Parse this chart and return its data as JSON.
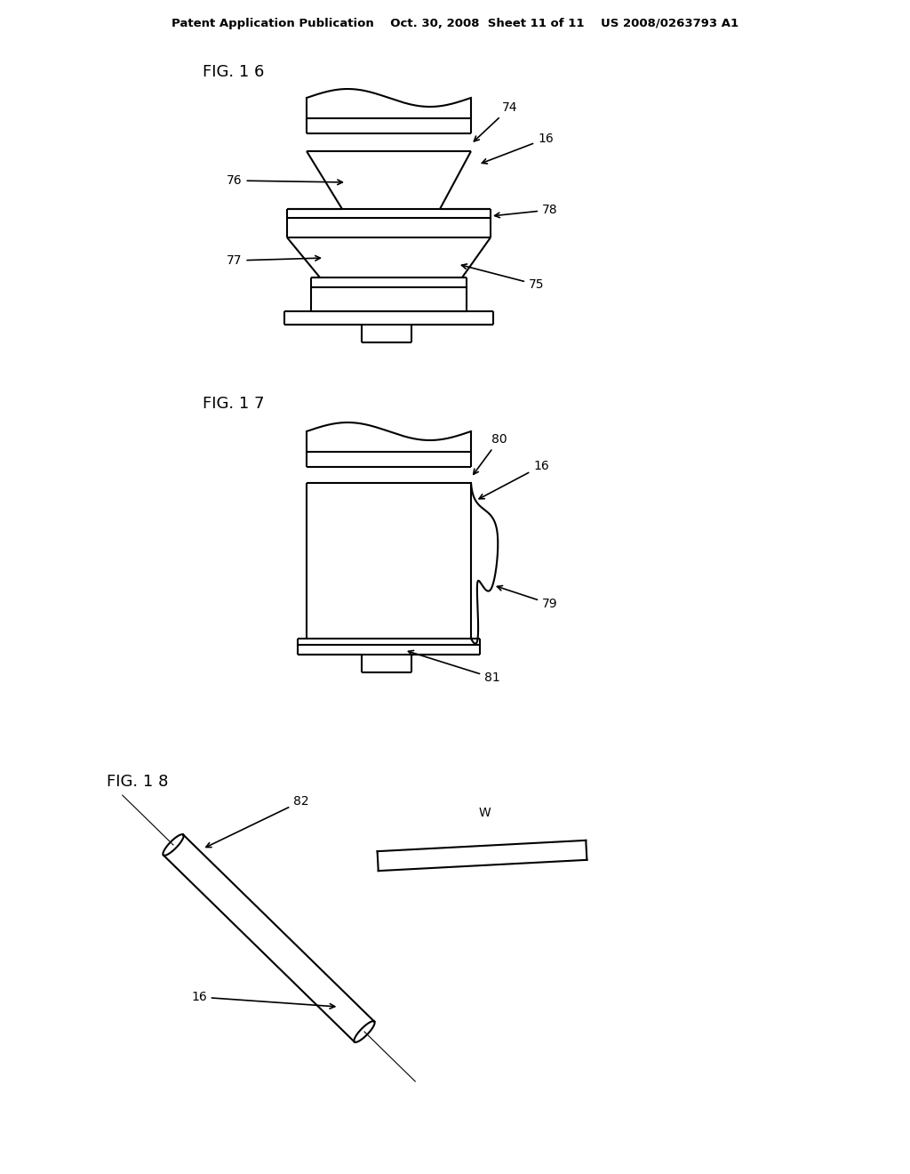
{
  "bg_color": "#ffffff",
  "text_color": "#000000",
  "line_color": "#000000",
  "header_text": "Patent Application Publication    Oct. 30, 2008  Sheet 11 of 11    US 2008/0263793 A1",
  "fig16_label": "FIG. 1 6",
  "fig17_label": "FIG. 1 7",
  "fig18_label": "FIG. 1 8"
}
